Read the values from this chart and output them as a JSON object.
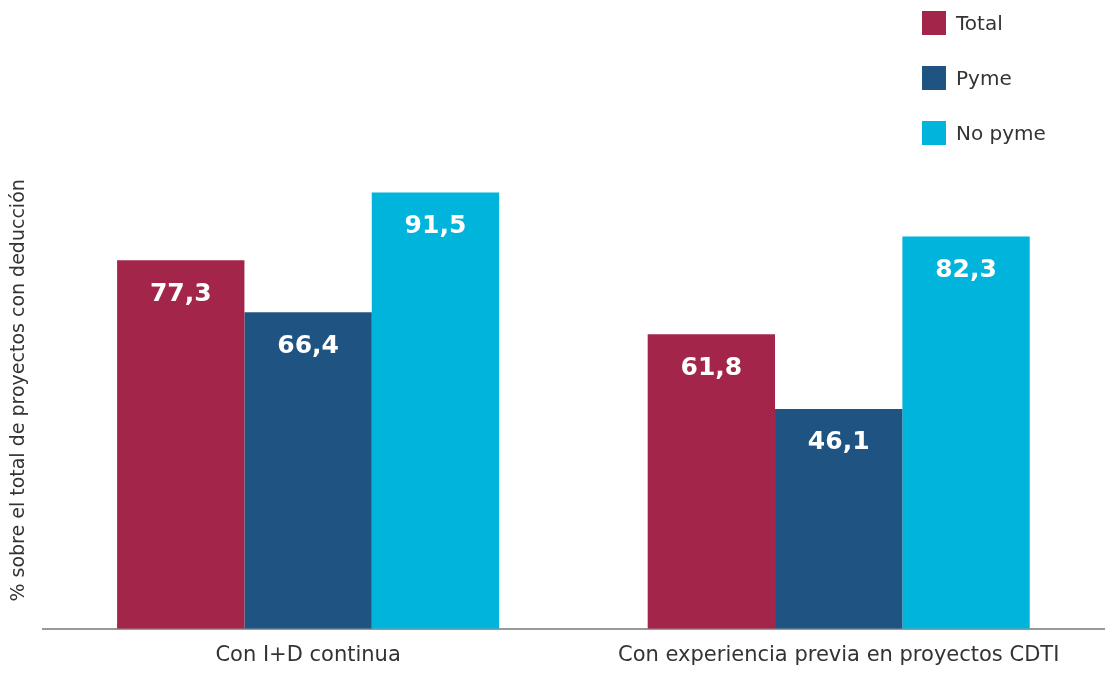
{
  "chart_data": {
    "type": "bar",
    "ylabel": "% sobre el total de proyectos con deducción",
    "categories": [
      "Con I+D continua",
      "Con experiencia previa en proyectos CDTI"
    ],
    "series": [
      {
        "name": "Total",
        "color": "#a3264a",
        "values": [
          77.3,
          61.8
        ],
        "value_labels": [
          "77,3",
          "61,8"
        ]
      },
      {
        "name": "Pyme",
        "color": "#1f5482",
        "values": [
          66.4,
          46.1
        ],
        "value_labels": [
          "66,4",
          "46,1"
        ]
      },
      {
        "name": "No pyme",
        "color": "#00b4dc",
        "values": [
          91.5,
          82.3
        ],
        "value_labels": [
          "91,5",
          "82,3"
        ]
      }
    ],
    "grid": false,
    "legend": "top right"
  }
}
